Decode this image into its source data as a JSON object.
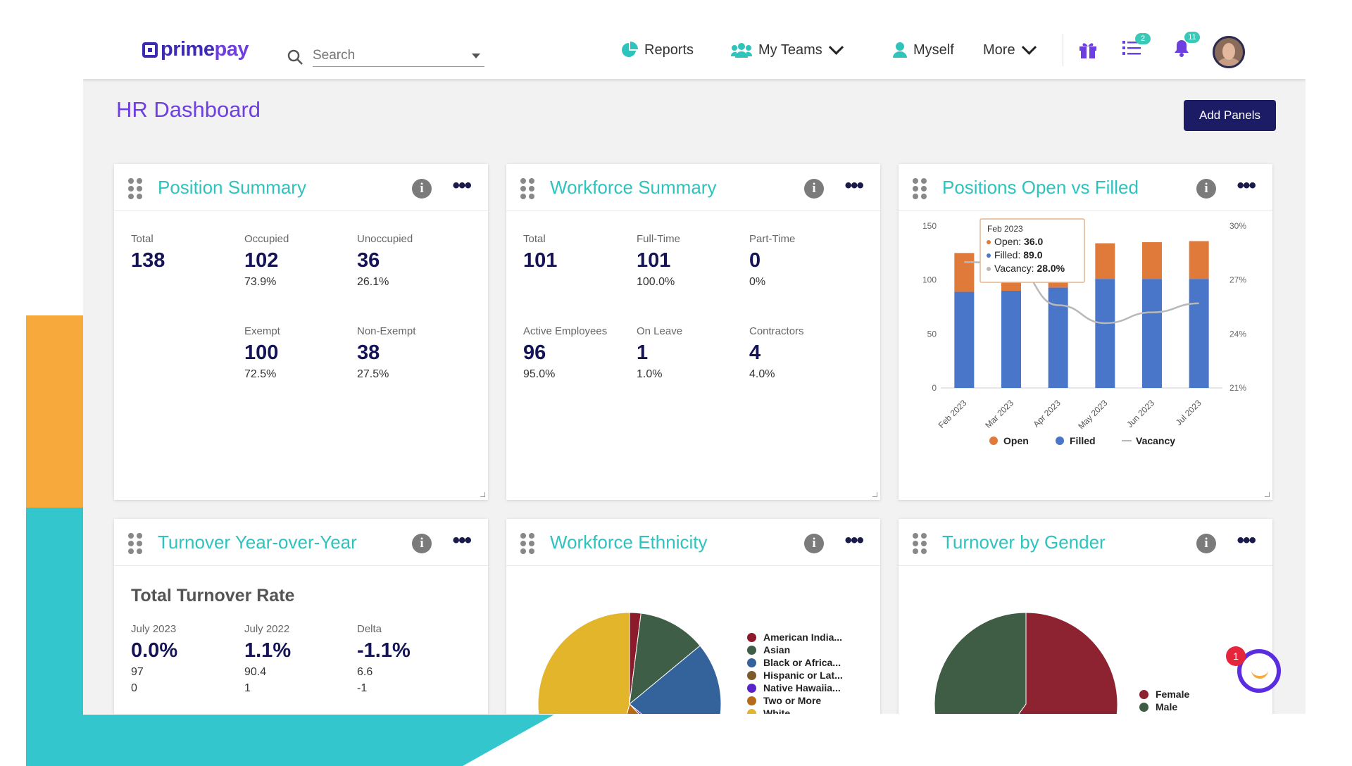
{
  "brand": {
    "name_part1": "prime",
    "name_part2": "pay"
  },
  "search": {
    "placeholder": "Search"
  },
  "nav": {
    "reports": "Reports",
    "my_teams": "My Teams",
    "myself": "Myself",
    "more": "More",
    "tasks_badge": "2",
    "notifications_badge": "11"
  },
  "icons": [
    "search-icon",
    "pie-chart-icon",
    "team-icon",
    "person-icon",
    "chevron-down-icon",
    "gift-icon",
    "task-list-icon",
    "bell-icon",
    "info-icon",
    "more-icon",
    "drag-handle-icon",
    "help-icon"
  ],
  "colors": {
    "accent": "#6e3fe0",
    "title_teal": "#2fc3bd",
    "navy": "#1b1b66",
    "open": "#e07a3a",
    "filled": "#4a76c9",
    "vacancy": "#b8b8b8"
  },
  "page": {
    "title": "HR Dashboard",
    "add_panels": "Add Panels"
  },
  "position_summary": {
    "title": "Position Summary",
    "total_label": "Total",
    "total": "138",
    "occupied_label": "Occupied",
    "occupied": "102",
    "occupied_pct": "73.9%",
    "unoccupied_label": "Unoccupied",
    "unoccupied": "36",
    "unoccupied_pct": "26.1%",
    "exempt_label": "Exempt",
    "exempt": "100",
    "exempt_pct": "72.5%",
    "nonexempt_label": "Non-Exempt",
    "nonexempt": "38",
    "nonexempt_pct": "27.5%"
  },
  "workforce_summary": {
    "title": "Workforce Summary",
    "total_label": "Total",
    "total": "101",
    "fulltime_label": "Full-Time",
    "fulltime": "101",
    "fulltime_pct": "100.0%",
    "parttime_label": "Part-Time",
    "parttime": "0",
    "parttime_pct": "0%",
    "active_label": "Active Employees",
    "active": "96",
    "active_pct": "95.0%",
    "leave_label": "On Leave",
    "leave": "1",
    "leave_pct": "1.0%",
    "contractors_label": "Contractors",
    "contractors": "4",
    "contractors_pct": "4.0%"
  },
  "positions_chart_panel": {
    "title": "Positions Open vs Filled",
    "tooltip": {
      "title": "Feb 2023",
      "open": "Open: ",
      "open_val": "36.0",
      "filled": "Filled: ",
      "filled_val": "89.0",
      "vacancy": "Vacancy: ",
      "vacancy_val": "28.0%"
    }
  },
  "turnover_yoy": {
    "title": "Turnover Year-over-Year",
    "subtitle": "Total Turnover Rate",
    "col1_label": "July 2023",
    "col1_val": "0.0%",
    "col1_a": "97",
    "col1_b": "0",
    "col2_label": "July 2022",
    "col2_val": "1.1%",
    "col2_a": "90.4",
    "col2_b": "1",
    "col3_label": "Delta",
    "col3_val": "-1.1%",
    "col3_a": "6.6",
    "col3_b": "-1"
  },
  "ethnicity": {
    "title": "Workforce Ethnicity"
  },
  "gender": {
    "title": "Turnover by Gender"
  },
  "help": {
    "badge": "1"
  },
  "chart_data": [
    {
      "type": "bar",
      "stacked": true,
      "categories": [
        "Feb 2023",
        "Mar 2023",
        "Apr 2023",
        "May 2023",
        "Jun 2023",
        "Jul 2023"
      ],
      "series": [
        {
          "name": "Open",
          "values": [
            36,
            35,
            32,
            33,
            34,
            35
          ],
          "color": "#e07a3a"
        },
        {
          "name": "Filled",
          "values": [
            89,
            90,
            93,
            101,
            101,
            101
          ],
          "color": "#4a76c9"
        },
        {
          "name": "Vacancy",
          "type": "line",
          "axis": "right",
          "values": [
            28.0,
            27.9,
            25.6,
            24.6,
            25.2,
            25.7
          ],
          "color": "#b8b8b8"
        }
      ],
      "ylim": [
        0,
        150
      ],
      "yticks": [
        "0",
        "50",
        "100",
        "150"
      ],
      "y2lim": [
        21,
        30
      ],
      "y2ticks": [
        "21%",
        "24%",
        "27%",
        "30%"
      ],
      "legend": "bottom",
      "grid": false
    },
    {
      "type": "pie",
      "labels": [
        "American India...",
        "Asian",
        "Black or Africa...",
        "Hispanic or Lat...",
        "Native Hawaiia...",
        "Two or More",
        "White"
      ],
      "values": [
        2,
        12,
        22,
        0,
        2,
        16,
        46
      ],
      "colors": [
        "#8b1a2b",
        "#3f5e48",
        "#34629b",
        "#7d5a2c",
        "#5a22c9",
        "#b76a18",
        "#e2b52b"
      ],
      "legend": "right"
    },
    {
      "type": "pie",
      "labels": [
        "Female",
        "Male"
      ],
      "values": [
        60,
        40
      ],
      "colors": [
        "#8d2330",
        "#3f5c45"
      ],
      "legend": "right"
    }
  ]
}
